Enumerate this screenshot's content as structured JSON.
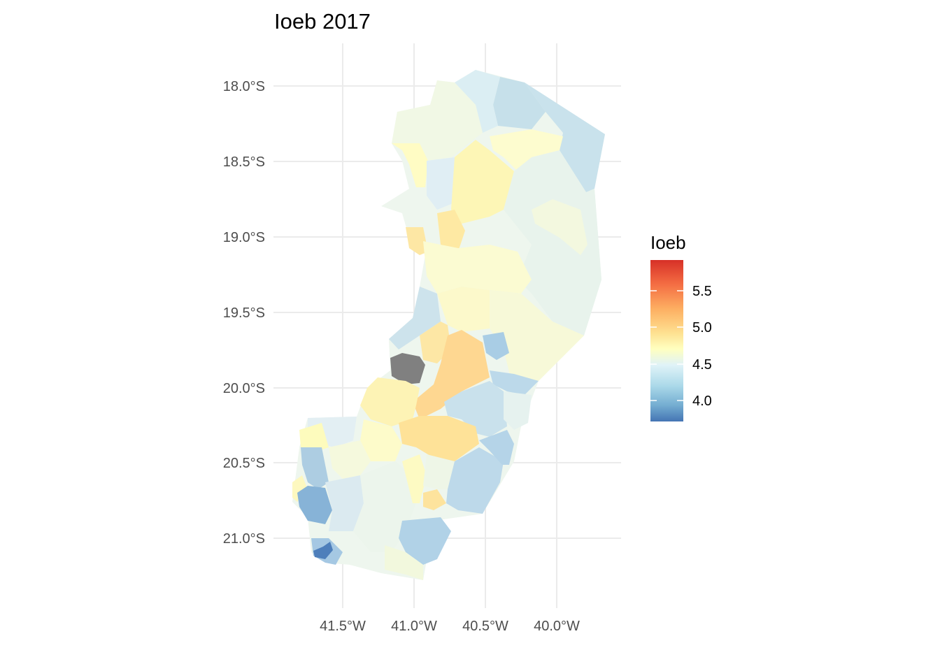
{
  "map": {
    "title": "Ioeb 2017",
    "x_ticks": [
      "41.5°W",
      "41.0°W",
      "40.5°W",
      "40.0°W"
    ],
    "y_ticks": [
      "18.0°S",
      "18.5°S",
      "19.0°S",
      "19.5°S",
      "20.0°S",
      "20.5°S",
      "21.0°S"
    ],
    "legend": {
      "title": "Ioeb",
      "labels": [
        "5.5",
        "5.0",
        "4.5",
        "4.0"
      ],
      "gradient": [
        "#d73027",
        "#f46d43",
        "#fdae61",
        "#fee090",
        "#ffffbf",
        "#e0f3f8",
        "#abd9e9",
        "#74add1",
        "#4575b4"
      ],
      "na_color": "#808080"
    }
  }
}
